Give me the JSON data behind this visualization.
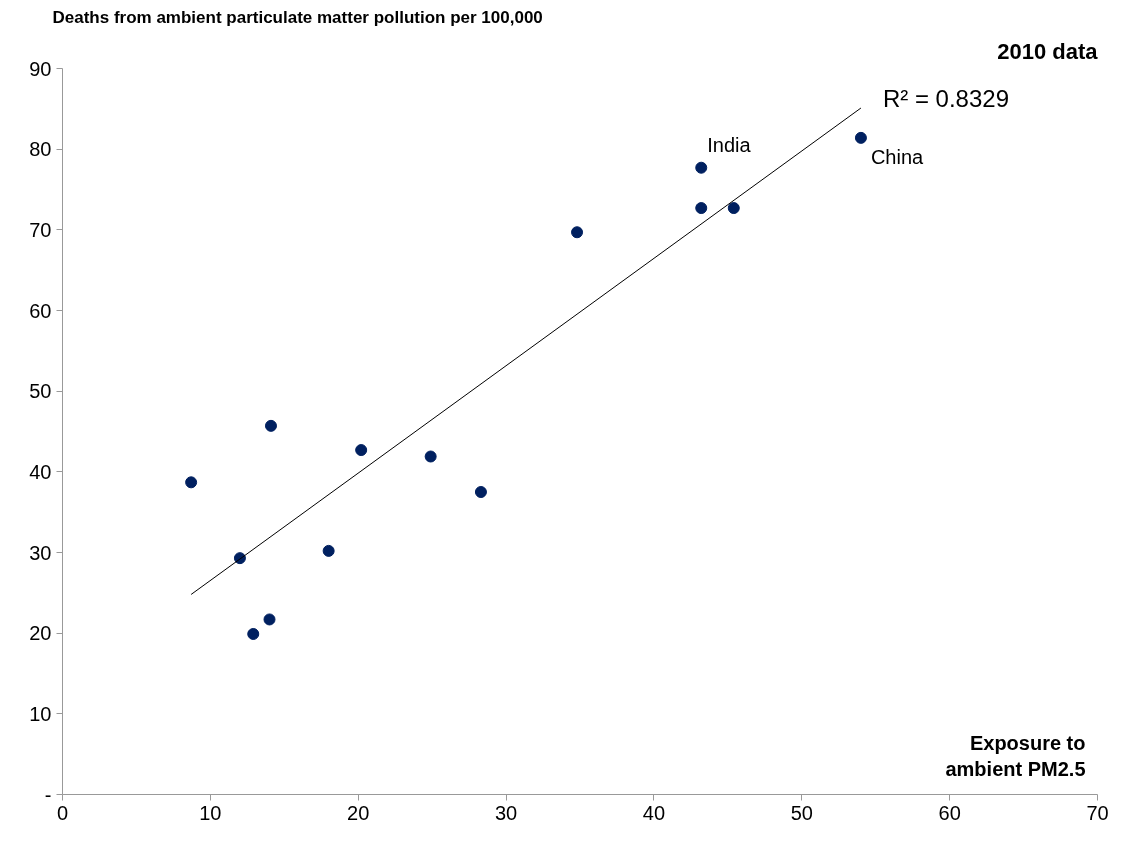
{
  "chart_data": {
    "type": "scatter",
    "title": "Deaths from ambient particulate matter pollution per 100,000",
    "subtitle": "2010 data",
    "xlabel": "Exposure to\nambient PM2.5",
    "series": [
      {
        "color": "#002060",
        "x": [
          8.7,
          12.0,
          12.9,
          14.0,
          14.1,
          18.0,
          20.2,
          24.9,
          28.3,
          34.8,
          43.2,
          43.2,
          45.4,
          54.0
        ],
        "values": [
          38.7,
          29.3,
          19.9,
          21.7,
          45.7,
          30.2,
          42.7,
          41.9,
          37.5,
          69.7,
          72.7,
          77.7,
          72.7,
          81.4
        ]
      },
      {
        "type": "line",
        "marker": "none",
        "color": "#000000",
        "x": [
          8.7,
          54.0
        ],
        "values": [
          24.8,
          85.1
        ]
      }
    ],
    "annotations": [
      "R² = 0.8329",
      {
        "text": "India",
        "x": 43.2,
        "y": 77.7
      },
      {
        "text": "China",
        "x": 54.0,
        "y": 81.4
      }
    ],
    "xlim": [
      0,
      70
    ],
    "ylim": [
      0,
      90
    ],
    "xticks": [
      0,
      10,
      20,
      30,
      40,
      50,
      60,
      70
    ],
    "yticks": [
      {
        "value": 0,
        "label": "-"
      },
      10,
      20,
      30,
      40,
      50,
      60,
      70,
      80,
      90
    ],
    "grid": false,
    "marker": "circle",
    "line_style": "solid"
  }
}
